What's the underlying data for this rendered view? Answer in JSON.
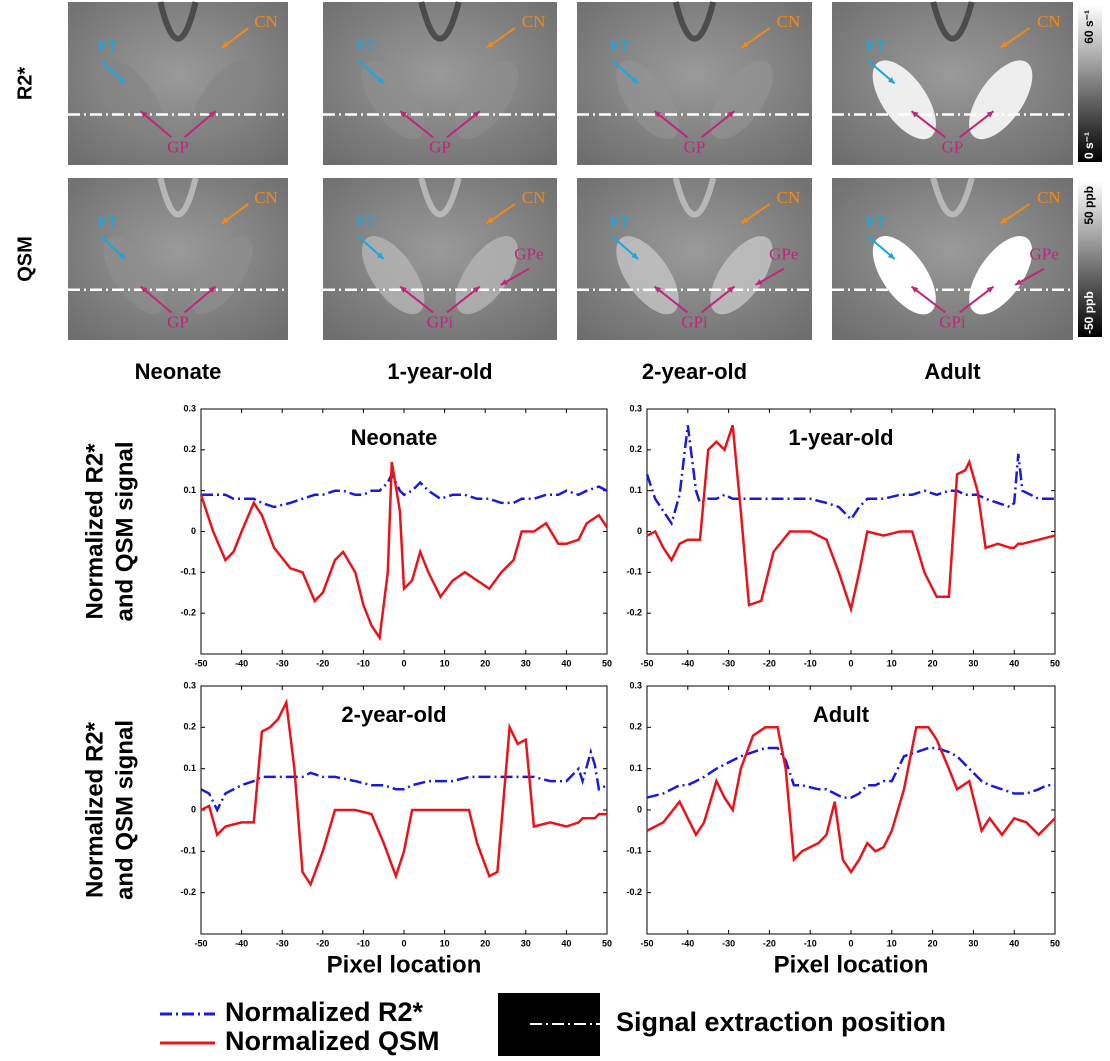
{
  "images": {
    "rows": [
      {
        "label": "R2*",
        "colorbar": [
          "60 s⁻¹",
          "0 s⁻¹"
        ],
        "panels": [
          [
            "PT",
            "CN",
            "GP"
          ],
          [
            "PT",
            "CN",
            "GP"
          ],
          [
            "PT",
            "CN",
            "GP"
          ],
          [
            "PT",
            "CN",
            "GP"
          ]
        ]
      },
      {
        "label": "QSM",
        "colorbar": [
          "50 ppb",
          "-50 ppb"
        ],
        "panels": [
          [
            "PT",
            "CN",
            "GP"
          ],
          [
            "PT",
            "CN",
            "GPe",
            "GPi"
          ],
          [
            "PT",
            "CN",
            "GPe",
            "GPi"
          ],
          [
            "PT",
            "CN",
            "GPe",
            "GPi"
          ]
        ]
      }
    ],
    "columns": [
      "Neonate",
      "1-year-old",
      "2-year-old",
      "Adult"
    ]
  },
  "chart_data": [
    {
      "type": "line",
      "title": "Neonate",
      "ylabel": [
        "Normalized R2*",
        "and QSM signal"
      ],
      "xlim": [
        -50,
        50
      ],
      "xticks": [
        -50,
        -40,
        -30,
        -20,
        -10,
        0,
        10,
        20,
        30,
        40,
        50
      ],
      "ylim": [
        -0.3,
        0.3
      ],
      "yticks": [
        0.3,
        0.2,
        0.1,
        0,
        -0.1,
        -0.2
      ],
      "x": [
        -50,
        -47,
        -44,
        -42,
        -40,
        -37,
        -35,
        -32,
        -28,
        -25,
        -22,
        -20,
        -17,
        -15,
        -12,
        -10,
        -8,
        -6,
        -4,
        -3,
        -1,
        0,
        2,
        4,
        6,
        9,
        12,
        15,
        18,
        21,
        24,
        27,
        29,
        32,
        35,
        38,
        40,
        43,
        45,
        48,
        50
      ],
      "series": [
        {
          "color": "#1a1adc",
          "style": "dashdot",
          "values": [
            0.09,
            0.09,
            0.09,
            0.08,
            0.08,
            0.08,
            0.07,
            0.06,
            0.07,
            0.08,
            0.09,
            0.09,
            0.1,
            0.1,
            0.09,
            0.09,
            0.1,
            0.1,
            0.12,
            0.14,
            0.1,
            0.09,
            0.1,
            0.12,
            0.1,
            0.08,
            0.09,
            0.09,
            0.08,
            0.08,
            0.07,
            0.07,
            0.08,
            0.08,
            0.09,
            0.09,
            0.1,
            0.09,
            0.1,
            0.11,
            0.1
          ]
        },
        {
          "color": "#e8141b",
          "style": "solid",
          "values": [
            0.09,
            0.0,
            -0.07,
            -0.05,
            0.0,
            0.07,
            0.04,
            -0.04,
            -0.09,
            -0.1,
            -0.17,
            -0.15,
            -0.07,
            -0.05,
            -0.1,
            -0.18,
            -0.23,
            -0.26,
            -0.1,
            0.17,
            0.05,
            -0.14,
            -0.12,
            -0.05,
            -0.1,
            -0.16,
            -0.12,
            -0.1,
            -0.12,
            -0.14,
            -0.1,
            -0.07,
            0.0,
            0.0,
            0.02,
            -0.03,
            -0.03,
            -0.02,
            0.02,
            0.04,
            0.01
          ]
        }
      ]
    },
    {
      "type": "line",
      "title": "1-year-old",
      "xlim": [
        -50,
        50
      ],
      "xticks": [
        -50,
        -40,
        -30,
        -20,
        -10,
        0,
        10,
        20,
        30,
        40,
        50
      ],
      "ylim": [
        -0.3,
        0.3
      ],
      "yticks": [
        0.3,
        0.2,
        0.1,
        0,
        -0.1,
        -0.2
      ],
      "x": [
        -50,
        -48,
        -46,
        -44,
        -42,
        -40,
        -38,
        -37,
        -35,
        -33,
        -31,
        -29,
        -27,
        -25,
        -22,
        -19,
        -15,
        -10,
        -6,
        -3,
        0,
        2,
        4,
        8,
        12,
        15,
        18,
        21,
        24,
        26,
        28,
        29,
        31,
        33,
        36,
        39,
        40,
        41,
        42,
        46,
        50
      ],
      "series": [
        {
          "color": "#1a1adc",
          "style": "dashdot",
          "values": [
            0.14,
            0.08,
            0.05,
            0.02,
            0.09,
            0.26,
            0.1,
            0.07,
            0.08,
            0.08,
            0.09,
            0.08,
            0.08,
            0.08,
            0.08,
            0.08,
            0.08,
            0.08,
            0.07,
            0.06,
            0.03,
            0.06,
            0.08,
            0.08,
            0.09,
            0.09,
            0.1,
            0.09,
            0.1,
            0.1,
            0.09,
            0.09,
            0.09,
            0.08,
            0.07,
            0.06,
            0.07,
            0.19,
            0.1,
            0.08,
            0.08
          ]
        },
        {
          "color": "#e8141b",
          "style": "solid",
          "values": [
            -0.01,
            0.0,
            -0.04,
            -0.07,
            -0.03,
            -0.02,
            -0.02,
            -0.02,
            0.2,
            0.22,
            0.2,
            0.26,
            0.05,
            -0.18,
            -0.17,
            -0.05,
            0.0,
            0.0,
            -0.02,
            -0.1,
            -0.19,
            -0.1,
            0.0,
            -0.01,
            0.0,
            0.0,
            -0.1,
            -0.16,
            -0.16,
            0.14,
            0.15,
            0.17,
            0.1,
            -0.04,
            -0.03,
            -0.04,
            -0.04,
            -0.03,
            -0.03,
            -0.02,
            -0.01
          ]
        }
      ]
    },
    {
      "type": "line",
      "title": "2-year-old",
      "ylabel": [
        "Normalized R2*",
        "and QSM signal"
      ],
      "xlabel": "Pixel location",
      "xlim": [
        -50,
        50
      ],
      "xticks": [
        -50,
        -40,
        -30,
        -20,
        -10,
        0,
        10,
        20,
        30,
        40,
        50
      ],
      "ylim": [
        -0.3,
        0.3
      ],
      "yticks": [
        0.3,
        0.2,
        0.1,
        0,
        -0.1,
        -0.2
      ],
      "x": [
        -50,
        -48,
        -46,
        -44,
        -40,
        -37,
        -35,
        -33,
        -31,
        -29,
        -27,
        -25,
        -23,
        -20,
        -17,
        -12,
        -8,
        -5,
        -2,
        0,
        2,
        6,
        12,
        16,
        18,
        21,
        23,
        26,
        28,
        30,
        32,
        36,
        40,
        43,
        44,
        46,
        47,
        48,
        50
      ],
      "series": [
        {
          "color": "#1a1adc",
          "style": "dashdot",
          "values": [
            0.05,
            0.04,
            0.0,
            0.04,
            0.06,
            0.07,
            0.08,
            0.08,
            0.08,
            0.08,
            0.08,
            0.08,
            0.09,
            0.08,
            0.08,
            0.07,
            0.06,
            0.06,
            0.05,
            0.05,
            0.06,
            0.07,
            0.07,
            0.08,
            0.08,
            0.08,
            0.08,
            0.08,
            0.08,
            0.08,
            0.08,
            0.07,
            0.07,
            0.1,
            0.07,
            0.14,
            0.11,
            0.05,
            0.06
          ]
        },
        {
          "color": "#e8141b",
          "style": "solid",
          "values": [
            0.0,
            0.01,
            -0.06,
            -0.04,
            -0.03,
            -0.03,
            0.19,
            0.2,
            0.22,
            0.26,
            0.1,
            -0.15,
            -0.18,
            -0.1,
            0.0,
            0.0,
            -0.01,
            -0.08,
            -0.16,
            -0.1,
            0.0,
            0.0,
            0.0,
            0.0,
            -0.08,
            -0.16,
            -0.15,
            0.2,
            0.16,
            0.17,
            -0.04,
            -0.03,
            -0.04,
            -0.03,
            -0.02,
            -0.02,
            -0.02,
            -0.01,
            -0.01
          ]
        }
      ]
    },
    {
      "type": "line",
      "title": "Adult",
      "xlabel": "Pixel location",
      "xlim": [
        -50,
        50
      ],
      "xticks": [
        -50,
        -40,
        -30,
        -20,
        -10,
        0,
        10,
        20,
        30,
        40,
        50
      ],
      "ylim": [
        -0.3,
        0.3
      ],
      "yticks": [
        0.3,
        0.2,
        0.1,
        0,
        -0.1,
        -0.2
      ],
      "x": [
        -50,
        -46,
        -42,
        -40,
        -38,
        -36,
        -33,
        -31,
        -29,
        -27,
        -24,
        -21,
        -18,
        -16,
        -14,
        -12,
        -8,
        -6,
        -4,
        -2,
        0,
        2,
        4,
        6,
        8,
        10,
        13,
        16,
        19,
        21,
        24,
        26,
        29,
        32,
        34,
        37,
        40,
        43,
        46,
        48,
        50
      ],
      "series": [
        {
          "color": "#1a1adc",
          "style": "dashdot",
          "values": [
            0.03,
            0.04,
            0.06,
            0.06,
            0.07,
            0.08,
            0.1,
            0.11,
            0.12,
            0.13,
            0.14,
            0.15,
            0.15,
            0.12,
            0.06,
            0.06,
            0.05,
            0.05,
            0.04,
            0.03,
            0.03,
            0.04,
            0.06,
            0.06,
            0.07,
            0.07,
            0.13,
            0.14,
            0.15,
            0.15,
            0.14,
            0.13,
            0.1,
            0.07,
            0.06,
            0.05,
            0.04,
            0.04,
            0.05,
            0.06,
            0.06
          ]
        },
        {
          "color": "#e8141b",
          "style": "solid",
          "values": [
            -0.05,
            -0.03,
            0.02,
            -0.02,
            -0.06,
            -0.03,
            0.07,
            0.03,
            0.0,
            0.1,
            0.18,
            0.2,
            0.2,
            0.1,
            -0.12,
            -0.1,
            -0.08,
            -0.06,
            0.02,
            -0.12,
            -0.15,
            -0.12,
            -0.08,
            -0.1,
            -0.09,
            -0.05,
            0.05,
            0.2,
            0.2,
            0.17,
            0.1,
            0.05,
            0.07,
            -0.05,
            -0.02,
            -0.06,
            -0.02,
            -0.03,
            -0.06,
            -0.04,
            -0.02
          ]
        }
      ]
    }
  ],
  "legend": [
    {
      "name": "Normalized R2*",
      "color": "#1a1adc",
      "style": "dashdot"
    },
    {
      "name": "Normalized QSM",
      "color": "#e8141b",
      "style": "solid"
    },
    {
      "name": "Signal extraction position",
      "style": "marker"
    }
  ]
}
